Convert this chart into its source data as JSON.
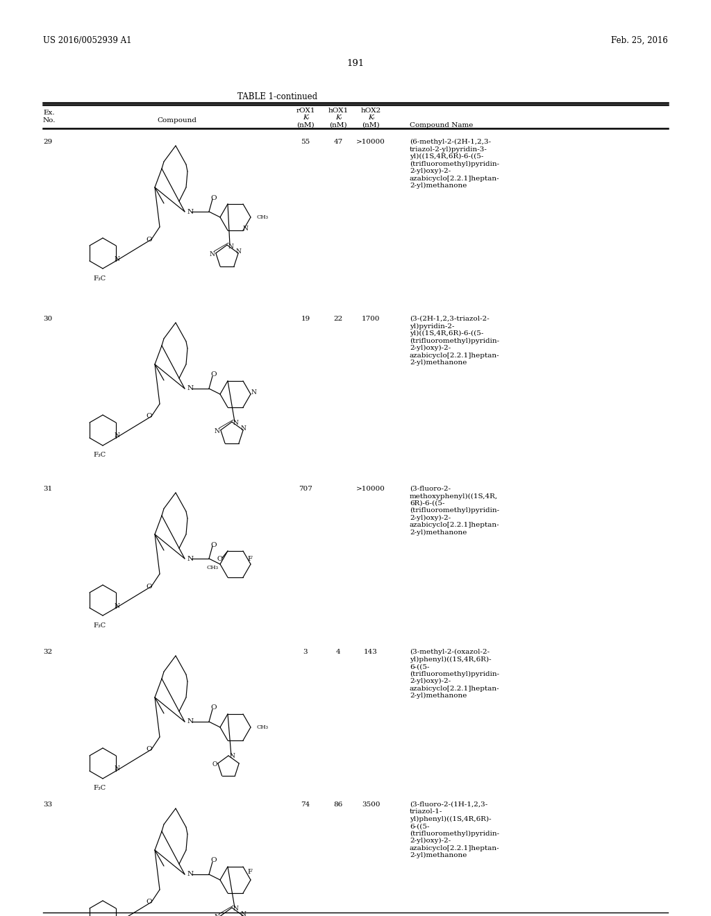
{
  "page_left": "US 2016/0052939 A1",
  "page_right": "Feb. 25, 2016",
  "page_number": "191",
  "table_title": "TABLE 1-continued",
  "bg_color": "#ffffff",
  "rows": [
    {
      "ex_no": "29",
      "rox1": "55",
      "hox1": "47",
      "hox2": ">10000",
      "name": "(6-methyl-2-(2H-1,2,3-\ntriazol-2-yl)pyridin-3-\nyl)((1S,4R,6R)-6-((5-\n(trifluoromethyl)pyridin-\n2-yl)oxy)-2-\nazabicyclo[2.2.1]heptan-\n2-yl)methanone"
    },
    {
      "ex_no": "30",
      "rox1": "19",
      "hox1": "22",
      "hox2": "1700",
      "name": "(3-(2H-1,2,3-triazol-2-\nyl)pyridin-2-\nyl)((1S,4R,6R)-6-((5-\n(trifluoromethyl)pyridin-\n2-yl)oxy)-2-\nazabicyclo[2.2.1]heptan-\n2-yl)methanone"
    },
    {
      "ex_no": "31",
      "rox1": "707",
      "hox1": "",
      "hox2": ">10000",
      "name": "(3-fluoro-2-\nmethoxyphenyl)((1S,4R,\n6R)-6-((5-\n(trifluoromethyl)pyridin-\n2-yl)oxy)-2-\nazabicyclo[2.2.1]heptan-\n2-yl)methanone"
    },
    {
      "ex_no": "32",
      "rox1": "3",
      "hox1": "4",
      "hox2": "143",
      "name": "(3-methyl-2-(oxazol-2-\nyl)phenyl)((1S,4R,6R)-\n6-((5-\n(trifluoromethyl)pyridin-\n2-yl)oxy)-2-\nazabicyclo[2.2.1]heptan-\n2-yl)methanone"
    },
    {
      "ex_no": "33",
      "rox1": "74",
      "hox1": "86",
      "hox2": "3500",
      "name": "(3-fluoro-2-(1H-1,2,3-\ntriazol-1-\nyl)phenyl)((1S,4R,6R)-\n6-((5-\n(trifluoromethyl)pyridin-\n2-yl)oxy)-2-\nazabicyclo[2.2.1]heptan-\n2-yl)methanone"
    }
  ]
}
